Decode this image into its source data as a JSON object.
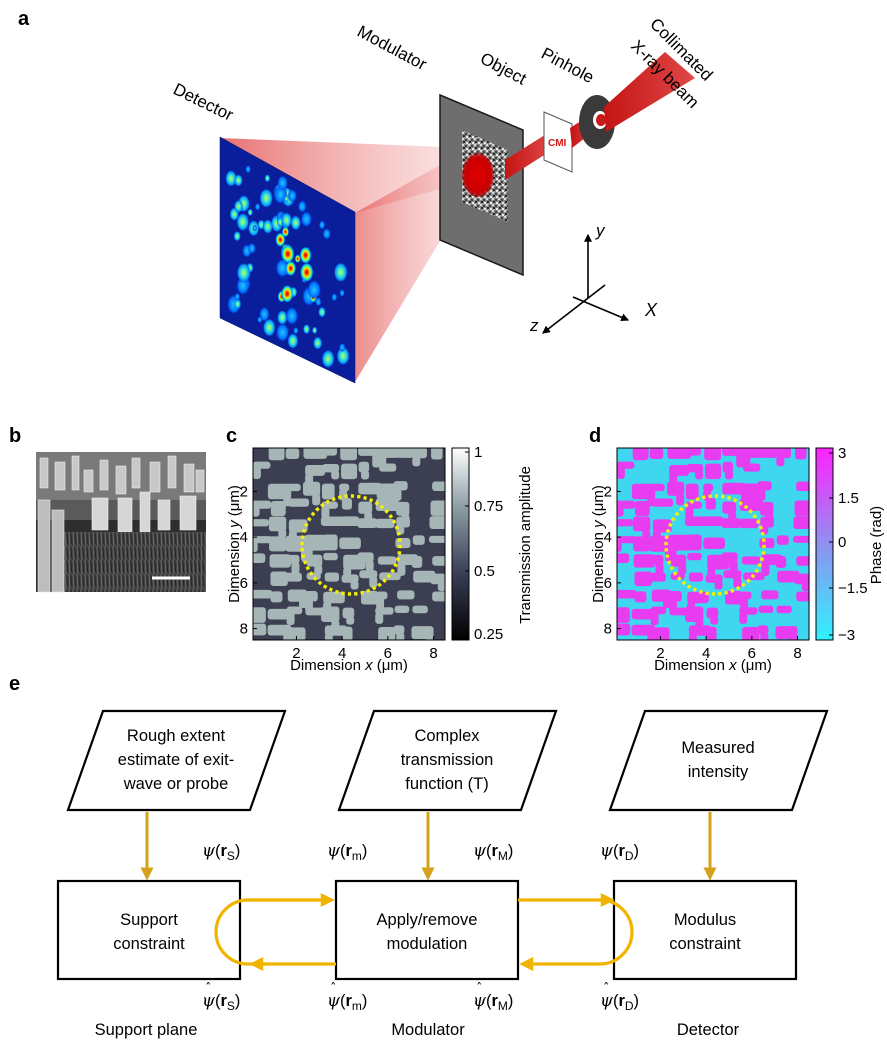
{
  "panels": {
    "a": "a",
    "b": "b",
    "c": "c",
    "d": "d",
    "e": "e"
  },
  "setup": {
    "detector": "Detector",
    "modulator": "Modulator",
    "object": "Object",
    "pinhole": "Pinhole",
    "beam_line1": "Collimated",
    "beam_line2": "X-ray beam",
    "axis_x": "X",
    "axis_y": "y",
    "axis_z": "z",
    "pinhole_text": "CMI"
  },
  "panel_c": {
    "xlabel_pre": "Dimension ",
    "xlabel_var": "x",
    "xlabel_unit": " (μm)",
    "ylabel_pre": "Dimension ",
    "ylabel_var": "y",
    "ylabel_unit": " (μm)",
    "xticks": [
      "2",
      "4",
      "6",
      "8"
    ],
    "yticks": [
      "2",
      "4",
      "6",
      "8"
    ],
    "colorbar_label": "Transmission amplitude",
    "colorbar_ticks": [
      "1",
      "0.75",
      "0.5",
      "0.25"
    ],
    "colors": {
      "islands": "#a6b6b6",
      "background": "#3c3f52"
    }
  },
  "panel_d": {
    "xlabel_pre": "Dimension ",
    "xlabel_var": "x",
    "xlabel_unit": " (μm)",
    "ylabel_pre": "Dimension ",
    "ylabel_var": "y",
    "ylabel_unit": " (μm)",
    "xticks": [
      "2",
      "4",
      "6",
      "8"
    ],
    "yticks": [
      "2",
      "4",
      "6",
      "8"
    ],
    "colorbar_label": "Phase (rad)",
    "colorbar_ticks": [
      "3",
      "1.5",
      "0",
      "−1.5",
      "−3"
    ],
    "colors": {
      "islands": "#e83cf0",
      "background": "#3fd7f0"
    }
  },
  "flow": {
    "inputs": [
      {
        "lines": [
          "Rough extent",
          "estimate of exit-",
          "wave or probe"
        ]
      },
      {
        "lines": [
          "Complex",
          "transmission",
          "function (T)"
        ]
      },
      {
        "lines": [
          "Measured",
          "intensity"
        ]
      }
    ],
    "boxes": [
      {
        "lines": [
          "Support",
          "constraint"
        ]
      },
      {
        "lines": [
          "Apply/remove",
          "modulation"
        ]
      },
      {
        "lines": [
          "Modulus",
          "constraint"
        ]
      }
    ],
    "psi_top": [
      {
        "sub": "S"
      },
      {
        "sub": "m"
      },
      {
        "sub": "M"
      },
      {
        "sub": "D"
      }
    ],
    "psi_bottom": [
      {
        "sub": "S"
      },
      {
        "sub": "m"
      },
      {
        "sub": "M"
      },
      {
        "sub": "D"
      }
    ],
    "psi_symbol": "ψ",
    "r_symbol": "r",
    "planes": [
      "Support plane",
      "Modulator",
      "Detector"
    ],
    "arrow_color": "#f0b400",
    "down_arrow_color": "#d6a21e"
  }
}
